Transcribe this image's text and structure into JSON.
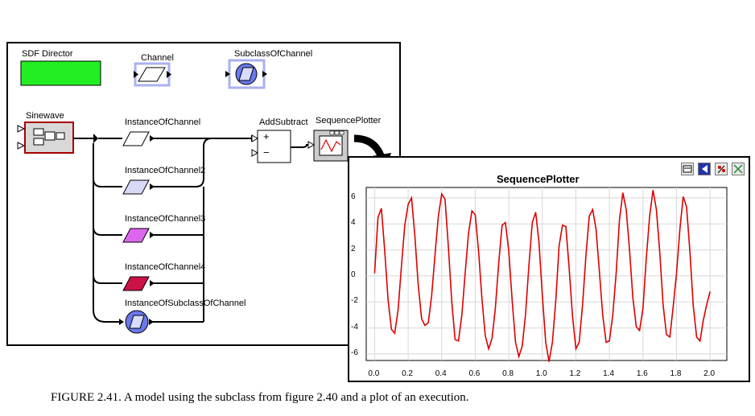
{
  "model": {
    "director_label": "SDF Director",
    "channel_label": "Channel",
    "subclass_label": "SubclassOfChannel",
    "sinewave_label": "Sinewave",
    "instances": [
      "InstanceOfChannel",
      "InstanceOfChannel2",
      "InstanceOfChannel3",
      "InstanceOfChannel4",
      "InstanceOfSubclassOfChannel"
    ],
    "addsubtract_label": "AddSubtract",
    "plotter_label": "SequencePlotter",
    "plus_sign": "+",
    "minus_sign": "−",
    "colors": {
      "director": "#22ee22",
      "channel1": "#ffffff",
      "channel2": "#d8d8f8",
      "channel3": "#dd66ee",
      "channel4": "#cc1144",
      "subclass": "#6a78ee"
    }
  },
  "plot_window": {
    "toolbar": [
      "print-icon",
      "reset-axes-icon",
      "format-icon",
      "fill-icon"
    ]
  },
  "chart_data": {
    "type": "line",
    "title": "SequencePlotter",
    "xlabel": "",
    "ylabel": "",
    "xlim": [
      -0.05,
      2.1
    ],
    "ylim": [
      -6.5,
      6.8
    ],
    "grid": true,
    "x_ticks": [
      "0.0",
      "0.2",
      "0.4",
      "0.6",
      "0.8",
      "1.0",
      "1.2",
      "1.4",
      "1.6",
      "1.8",
      "2.0"
    ],
    "y_ticks": [
      "6",
      "4",
      "2",
      "0",
      "-2",
      "-4",
      "-6"
    ],
    "color": "#dd0000",
    "series": [
      {
        "x": [
          0.0,
          0.02,
          0.04,
          0.06,
          0.08,
          0.1,
          0.12,
          0.14,
          0.16,
          0.18,
          0.2,
          0.22,
          0.24,
          0.26,
          0.28,
          0.3,
          0.32,
          0.34,
          0.36,
          0.38,
          0.4,
          0.42,
          0.44,
          0.46,
          0.48,
          0.5,
          0.52,
          0.54,
          0.56,
          0.58,
          0.6,
          0.62,
          0.64,
          0.66,
          0.68,
          0.7,
          0.72,
          0.74,
          0.76,
          0.78,
          0.8,
          0.82,
          0.84,
          0.86,
          0.88,
          0.9,
          0.92,
          0.94,
          0.96,
          0.98,
          1.0,
          1.02,
          1.04,
          1.06,
          1.08,
          1.1,
          1.12,
          1.14,
          1.16,
          1.18,
          1.2,
          1.22,
          1.24,
          1.26,
          1.28,
          1.3,
          1.32,
          1.34,
          1.36,
          1.38,
          1.4,
          1.42,
          1.44,
          1.46,
          1.48,
          1.5,
          1.52,
          1.54,
          1.56,
          1.58,
          1.6,
          1.62,
          1.64,
          1.66,
          1.68,
          1.7,
          1.72,
          1.74,
          1.76,
          1.78,
          1.8,
          1.82,
          1.84,
          1.86,
          1.88,
          1.9,
          1.92,
          1.94,
          1.96,
          1.98,
          2.0
        ],
        "y": [
          0.2,
          4.5,
          5.2,
          2.0,
          -1.8,
          -4.1,
          -4.4,
          -2.6,
          0.8,
          3.9,
          5.5,
          6.0,
          3.1,
          -0.7,
          -3.3,
          -3.8,
          -3.6,
          -1.5,
          1.6,
          4.6,
          6.3,
          5.9,
          2.2,
          -2.0,
          -4.9,
          -5.0,
          -3.0,
          0.2,
          3.3,
          5.0,
          4.7,
          1.9,
          -1.8,
          -4.6,
          -5.6,
          -4.8,
          -2.5,
          1.0,
          3.9,
          4.1,
          1.9,
          -1.9,
          -5.1,
          -6.2,
          -5.4,
          -2.9,
          0.8,
          4.1,
          4.9,
          2.6,
          -1.5,
          -5.1,
          -6.6,
          -5.1,
          -1.9,
          2.3,
          3.9,
          3.8,
          0.6,
          -3.1,
          -5.6,
          -5.1,
          -2.2,
          1.6,
          4.6,
          5.1,
          3.6,
          0.4,
          -3.0,
          -5.1,
          -5.0,
          -3.0,
          0.2,
          4.3,
          6.4,
          5.1,
          2.0,
          -1.7,
          -3.9,
          -4.2,
          -2.5,
          1.4,
          4.6,
          6.6,
          5.1,
          1.8,
          -2.2,
          -4.5,
          -4.7,
          -2.4,
          0.2,
          3.6,
          6.1,
          5.3,
          1.8,
          -2.3,
          -4.7,
          -5.0,
          -3.4,
          -2.2,
          -1.2
        ]
      }
    ]
  },
  "caption": "FIGURE 2.41.  A model using the subclass from figure 2.40 and a plot of an execution."
}
